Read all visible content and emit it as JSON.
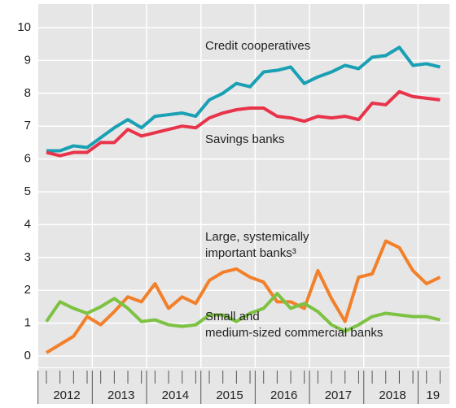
{
  "chart_data": {
    "type": "line",
    "categories": [
      null,
      null,
      null,
      null,
      null,
      null,
      null,
      null,
      null,
      null,
      null,
      null,
      null,
      null,
      null,
      null,
      null,
      null,
      null,
      null,
      null,
      null,
      null,
      null,
      null,
      null,
      null,
      null,
      null,
      null
    ],
    "xgroups": [
      "2012",
      "2013",
      "2014",
      "2015",
      "2016",
      "2017",
      "2018",
      "19"
    ],
    "ylim": [
      0,
      10
    ],
    "yticks": [
      0,
      1,
      2,
      3,
      4,
      5,
      6,
      7,
      8,
      9,
      10
    ],
    "grid": true,
    "series": [
      {
        "color": "#1aa0b4",
        "values": [
          6.25,
          6.25,
          6.4,
          6.35,
          6.65,
          6.95,
          7.2,
          6.95,
          7.3,
          7.35,
          7.4,
          7.3,
          7.8,
          8.0,
          8.3,
          8.2,
          8.65,
          8.7,
          8.8,
          8.3,
          8.5,
          8.65,
          8.85,
          8.75,
          9.1,
          9.15,
          9.4,
          8.85,
          8.9,
          8.8
        ]
      },
      {
        "color": "#e8344a",
        "values": [
          6.2,
          6.1,
          6.2,
          6.2,
          6.5,
          6.5,
          6.9,
          6.7,
          6.8,
          6.9,
          7.0,
          6.95,
          7.25,
          7.4,
          7.5,
          7.55,
          7.55,
          7.3,
          7.25,
          7.15,
          7.3,
          7.25,
          7.3,
          7.2,
          7.7,
          7.65,
          8.05,
          7.9,
          7.85,
          7.8
        ]
      },
      {
        "color": "#f2802a",
        "values": [
          0.1,
          0.35,
          0.6,
          1.2,
          0.95,
          1.35,
          1.8,
          1.65,
          2.2,
          1.45,
          1.8,
          1.6,
          2.3,
          2.55,
          2.65,
          2.4,
          2.25,
          1.65,
          1.65,
          1.45,
          2.6,
          1.75,
          1.05,
          2.4,
          2.5,
          3.5,
          3.3,
          2.6,
          2.2,
          2.4
        ]
      },
      {
        "color": "#7dc242",
        "values": [
          1.05,
          1.65,
          1.45,
          1.3,
          1.5,
          1.75,
          1.45,
          1.05,
          1.1,
          0.95,
          0.9,
          0.95,
          1.25,
          1.25,
          1.05,
          1.3,
          1.45,
          1.9,
          1.45,
          1.6,
          1.35,
          0.95,
          0.75,
          0.95,
          1.2,
          1.3,
          1.25,
          1.2,
          1.2,
          1.1
        ]
      }
    ],
    "annotations": [
      {
        "lines": [
          "Credit cooperatives"
        ]
      },
      {
        "lines": [
          "Savings banks"
        ]
      },
      {
        "lines": [
          "Large, systemically",
          "important banks³"
        ]
      },
      {
        "lines": [
          "Small and",
          "medium-sized commercial banks"
        ]
      }
    ]
  }
}
